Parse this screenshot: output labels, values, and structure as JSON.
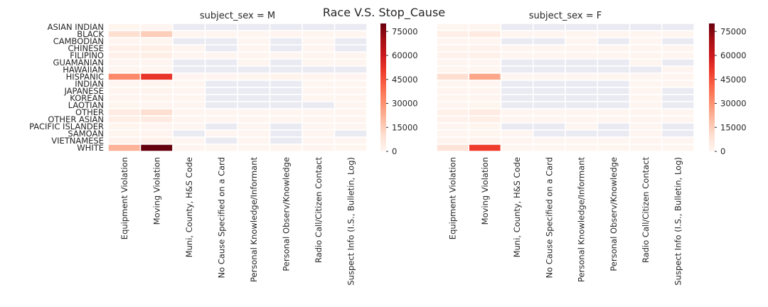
{
  "figure": {
    "suptitle": "Race V.S. Stop_Cause"
  },
  "colors": {
    "nan": "#EAEAF2",
    "cmap": [
      "#FFF5F0",
      "#FEE0D2",
      "#FCBBA1",
      "#FC9272",
      "#FB6A4A",
      "#EF3B2C",
      "#CB181D",
      "#A50F15",
      "#67000D"
    ]
  },
  "chart_data": [
    {
      "type": "heatmap",
      "title": "subject_sex = M",
      "rows": [
        "ASIAN INDIAN",
        "BLACK",
        "CAMBODIAN",
        "CHINESE",
        "FILIPINO",
        "GUAMANIAN",
        "HAWAIIAN",
        "HISPANIC",
        "INDIAN",
        "JAPANESE",
        "KOREAN",
        "LAOTIAN",
        "OTHER",
        "OTHER ASIAN",
        "PACIFIC ISLANDER",
        "SAMOAN",
        "VIETNAMESE",
        "WHITE"
      ],
      "columns": [
        "Equipment Violation",
        "Moving Violation",
        "Muni, County, H&S Code",
        "No Cause Specified on a Card",
        "Personal Knowledge/Informant",
        "Personal Observ/Knowledge",
        "Radio Call/Citizen Contact",
        "Suspect Info (I.S., Bulletin, Log)"
      ],
      "values": [
        [
          200,
          400,
          null,
          null,
          null,
          null,
          null,
          null
        ],
        [
          10000,
          15000,
          100,
          100,
          50,
          300,
          200,
          100
        ],
        [
          100,
          200,
          null,
          null,
          5,
          null,
          5,
          null
        ],
        [
          2000,
          3000,
          20,
          null,
          10,
          null,
          30,
          null
        ],
        [
          2000,
          3500,
          20,
          5,
          10,
          50,
          30,
          5
        ],
        [
          50,
          100,
          null,
          null,
          5,
          null,
          5,
          5
        ],
        [
          50,
          100,
          null,
          null,
          null,
          null,
          null,
          null
        ],
        [
          32000,
          52000,
          500,
          300,
          200,
          900,
          600,
          300
        ],
        [
          100,
          200,
          5,
          null,
          null,
          null,
          5,
          5
        ],
        [
          500,
          900,
          5,
          null,
          null,
          null,
          5,
          5
        ],
        [
          300,
          600,
          5,
          null,
          null,
          null,
          5,
          5
        ],
        [
          200,
          400,
          5,
          null,
          null,
          null,
          null,
          5
        ],
        [
          5000,
          10000,
          50,
          30,
          20,
          100,
          80,
          30
        ],
        [
          3000,
          5000,
          20,
          10,
          10,
          40,
          30,
          10
        ],
        [
          200,
          500,
          5,
          null,
          5,
          null,
          5,
          5
        ],
        [
          200,
          400,
          null,
          5,
          5,
          null,
          5,
          null
        ],
        [
          1500,
          2500,
          10,
          null,
          5,
          null,
          20,
          5
        ],
        [
          22000,
          80000,
          300,
          150,
          120,
          600,
          500,
          200
        ]
      ],
      "colorbar": {
        "ticks": [
          0,
          15000,
          30000,
          45000,
          60000,
          75000
        ],
        "tick_labels": [
          "0",
          "15000",
          "30000",
          "45000",
          "60000",
          "75000"
        ],
        "vmin": 0,
        "vmax": 80000
      }
    },
    {
      "type": "heatmap",
      "title": "subject_sex = F",
      "rows": [
        "ASIAN INDIAN",
        "BLACK",
        "CAMBODIAN",
        "CHINESE",
        "FILIPINO",
        "GUAMANIAN",
        "HAWAIIAN",
        "HISPANIC",
        "INDIAN",
        "JAPANESE",
        "KOREAN",
        "LAOTIAN",
        "OTHER",
        "OTHER ASIAN",
        "PACIFIC ISLANDER",
        "SAMOAN",
        "VIETNAMESE",
        "WHITE"
      ],
      "columns": [
        "Equipment Violation",
        "Moving Violation",
        "Muni, County, H&S Code",
        "No Cause Specified on a Card",
        "Personal Knowledge/Informant",
        "Personal Observ/Knowledge",
        "Radio Call/Citizen Contact",
        "Suspect Info (I.S., Bulletin, Log)"
      ],
      "values": [
        [
          100,
          200,
          null,
          null,
          null,
          null,
          null,
          null
        ],
        [
          3000,
          5000,
          30,
          20,
          10,
          60,
          50,
          20
        ],
        [
          50,
          100,
          null,
          null,
          5,
          null,
          5,
          null
        ],
        [
          1000,
          1500,
          10,
          5,
          5,
          20,
          10,
          5
        ],
        [
          1500,
          2500,
          10,
          5,
          5,
          20,
          10,
          5
        ],
        [
          30,
          60,
          null,
          null,
          null,
          null,
          5,
          null
        ],
        [
          30,
          60,
          null,
          null,
          null,
          null,
          null,
          5
        ],
        [
          10000,
          25000,
          100,
          60,
          40,
          200,
          150,
          60
        ],
        [
          50,
          100,
          null,
          null,
          null,
          null,
          5,
          5
        ],
        [
          300,
          500,
          null,
          null,
          null,
          null,
          5,
          null
        ],
        [
          200,
          400,
          null,
          null,
          null,
          null,
          5,
          null
        ],
        [
          100,
          200,
          null,
          null,
          null,
          null,
          5,
          null
        ],
        [
          2000,
          5000,
          20,
          10,
          5,
          40,
          30,
          5
        ],
        [
          1500,
          3000,
          10,
          5,
          5,
          20,
          10,
          5
        ],
        [
          100,
          200,
          null,
          null,
          5,
          null,
          5,
          null
        ],
        [
          100,
          200,
          5,
          null,
          null,
          null,
          5,
          null
        ],
        [
          800,
          1500,
          5,
          5,
          5,
          10,
          10,
          5
        ],
        [
          8000,
          50000,
          60,
          40,
          30,
          200,
          150,
          60
        ]
      ],
      "colorbar": {
        "ticks": [
          0,
          15000,
          30000,
          45000,
          60000,
          75000
        ],
        "tick_labels": [
          "0",
          "15000",
          "30000",
          "45000",
          "60000",
          "75000"
        ],
        "vmin": 0,
        "vmax": 80000
      }
    }
  ]
}
